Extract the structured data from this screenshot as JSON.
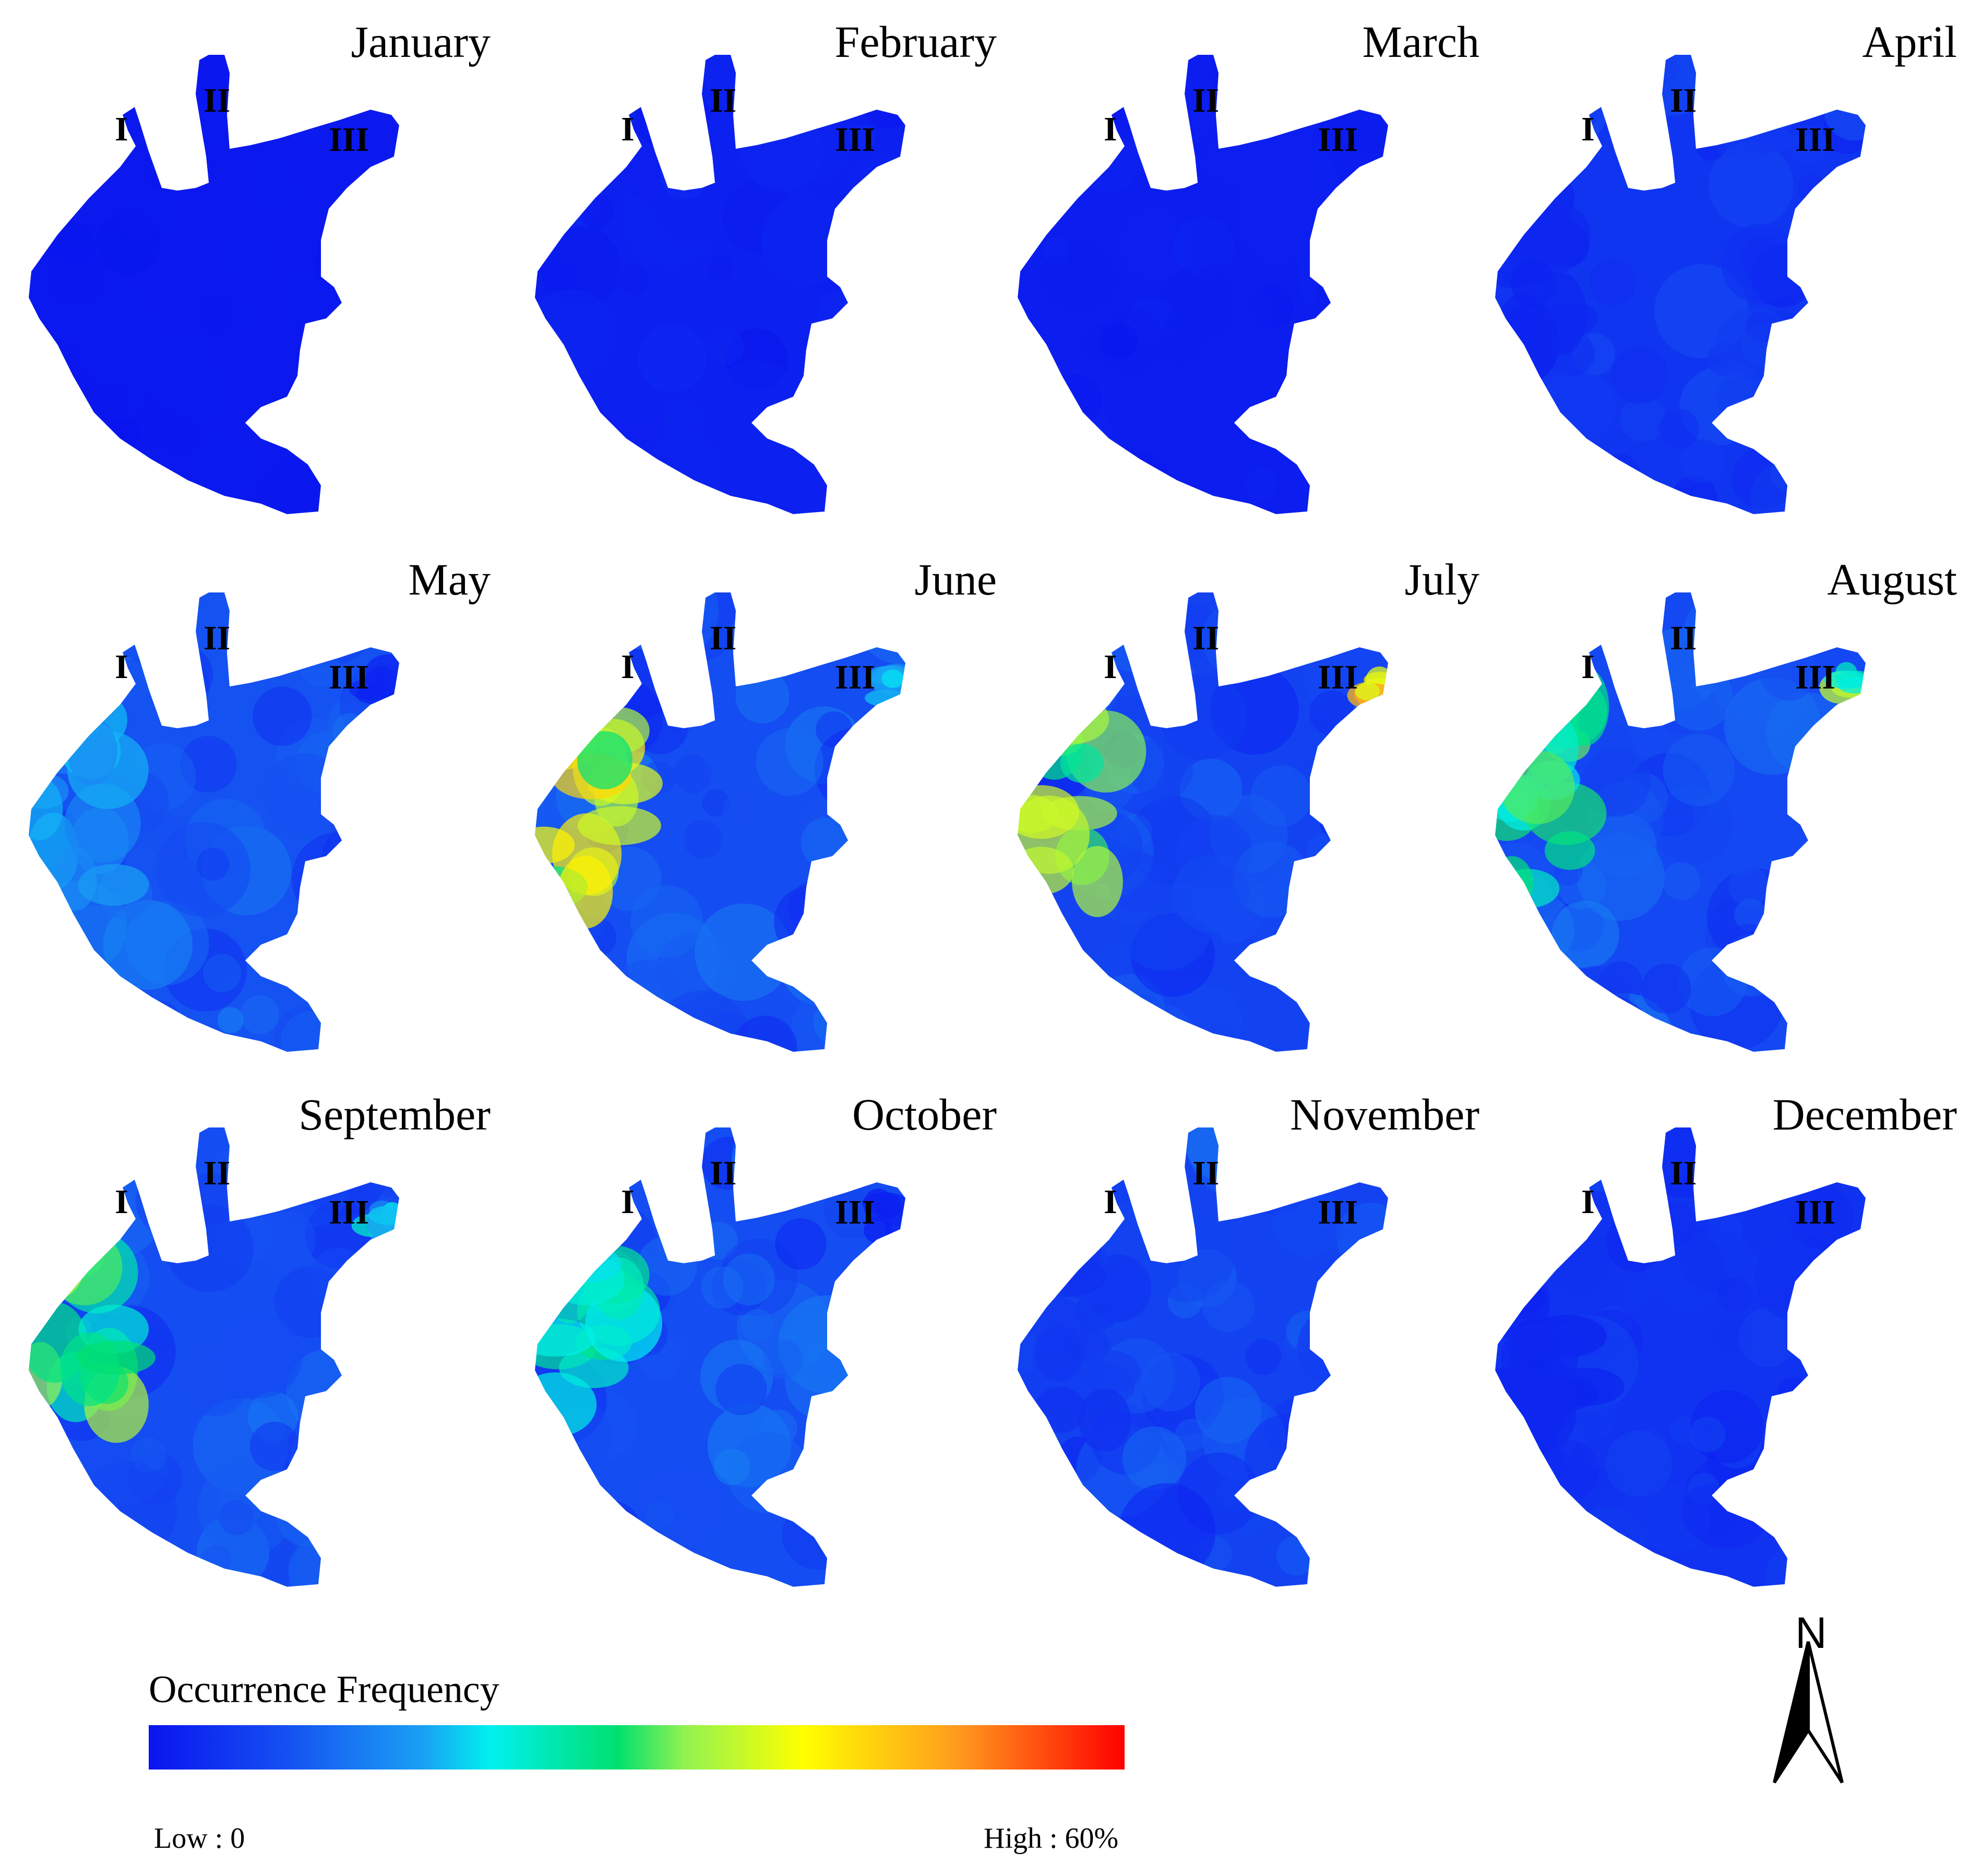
{
  "colors": {
    "low": "#0a14ef",
    "mid": "#00f0f0",
    "high": "#ff0000",
    "background": "#ffffff"
  },
  "region_labels": [
    "I",
    "II",
    "III"
  ],
  "months": [
    {
      "name": "January",
      "mean_level": 0.02,
      "west_hotspot": 0.0,
      "east_hotspot": 0.0,
      "texture": 0.02
    },
    {
      "name": "February",
      "mean_level": 0.05,
      "west_hotspot": 0.0,
      "east_hotspot": 0.0,
      "texture": 0.04
    },
    {
      "name": "March",
      "mean_level": 0.04,
      "west_hotspot": 0.0,
      "east_hotspot": 0.0,
      "texture": 0.03
    },
    {
      "name": "April",
      "mean_level": 0.14,
      "west_hotspot": 0.05,
      "east_hotspot": 0.0,
      "texture": 0.08
    },
    {
      "name": "May",
      "mean_level": 0.26,
      "west_hotspot": 0.35,
      "east_hotspot": 0.05,
      "texture": 0.12
    },
    {
      "name": "June",
      "mean_level": 0.24,
      "west_hotspot": 0.75,
      "east_hotspot": 0.35,
      "texture": 0.14
    },
    {
      "name": "July",
      "mean_level": 0.2,
      "west_hotspot": 0.7,
      "east_hotspot": 0.85,
      "texture": 0.14
    },
    {
      "name": "August",
      "mean_level": 0.22,
      "west_hotspot": 0.55,
      "east_hotspot": 0.6,
      "texture": 0.12
    },
    {
      "name": "September",
      "mean_level": 0.24,
      "west_hotspot": 0.6,
      "east_hotspot": 0.4,
      "texture": 0.12
    },
    {
      "name": "October",
      "mean_level": 0.24,
      "west_hotspot": 0.5,
      "east_hotspot": 0.05,
      "texture": 0.12
    },
    {
      "name": "November",
      "mean_level": 0.2,
      "west_hotspot": 0.1,
      "east_hotspot": 0.0,
      "texture": 0.1
    },
    {
      "name": "December",
      "mean_level": 0.13,
      "west_hotspot": 0.05,
      "east_hotspot": 0.0,
      "texture": 0.07
    }
  ],
  "legend": {
    "title": "Occurrence Frequency",
    "low_label": "Low : 0",
    "high_label": "High : 60%",
    "range": [
      0,
      60
    ],
    "unit": "%"
  },
  "north_arrow": {
    "label": "N"
  }
}
